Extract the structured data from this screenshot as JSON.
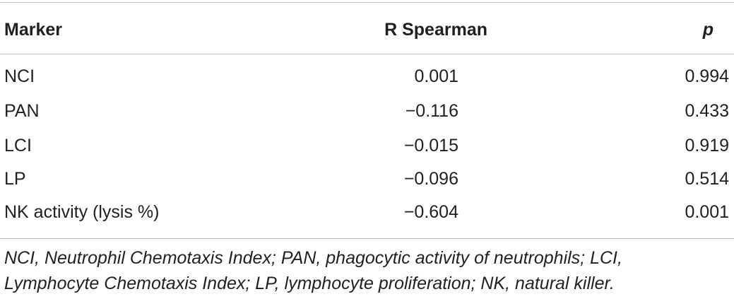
{
  "table": {
    "headers": {
      "marker": "Marker",
      "r_spearman": "R Spearman",
      "p": "p"
    },
    "rows": [
      {
        "marker": "NCI",
        "r": "0.001",
        "p": "0.994"
      },
      {
        "marker": "PAN",
        "r": "−0.116",
        "p": "0.433"
      },
      {
        "marker": "LCI",
        "r": "−0.015",
        "p": "0.919"
      },
      {
        "marker": "LP",
        "r": "−0.096",
        "p": "0.514"
      },
      {
        "marker": "NK activity (lysis %)",
        "r": "−0.604",
        "p": "0.001"
      }
    ]
  },
  "footnote": {
    "line1": "NCI, Neutrophil Chemotaxis Index; PAN, phagocytic activity of neutrophils; LCI,",
    "line2": "Lymphocyte Chemotaxis Index; LP, lymphocyte proliferation; NK, natural killer."
  }
}
